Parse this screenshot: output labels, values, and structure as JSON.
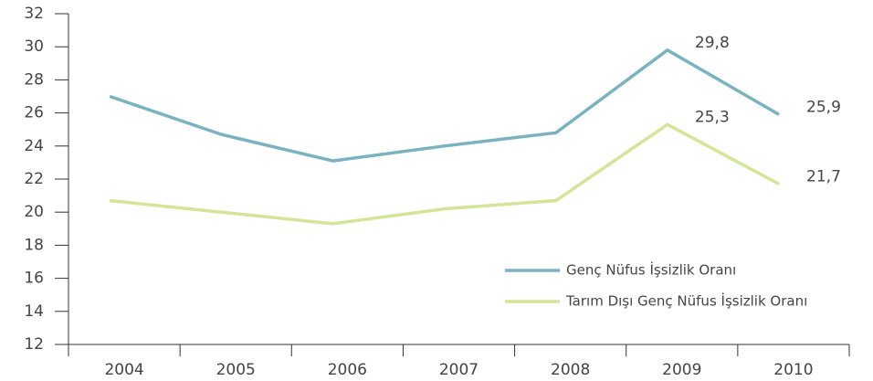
{
  "chart_data": {
    "type": "line",
    "categories": [
      "2004",
      "2005",
      "2006",
      "2007",
      "2008",
      "2009",
      "2010"
    ],
    "series": [
      {
        "name": "Genç Nüfus İşsizlik Oranı",
        "color": "#7ab3bf",
        "values": [
          27.0,
          24.7,
          23.1,
          24.0,
          24.8,
          29.8,
          25.9
        ],
        "value_labels": [
          null,
          null,
          null,
          null,
          null,
          "29,8",
          "25,9"
        ]
      },
      {
        "name": "Tarım Dışı Genç Nüfus İşsizlik Oranı",
        "color": "#d4e59a",
        "values": [
          20.7,
          20.0,
          19.3,
          20.2,
          20.7,
          25.3,
          21.7
        ],
        "value_labels": [
          null,
          null,
          null,
          null,
          null,
          "25,3",
          "21,7"
        ]
      }
    ],
    "ylim": [
      12,
      32
    ],
    "yticks": [
      12,
      14,
      16,
      18,
      20,
      22,
      24,
      26,
      28,
      30,
      32
    ],
    "grid": false,
    "legend": "lower right"
  }
}
